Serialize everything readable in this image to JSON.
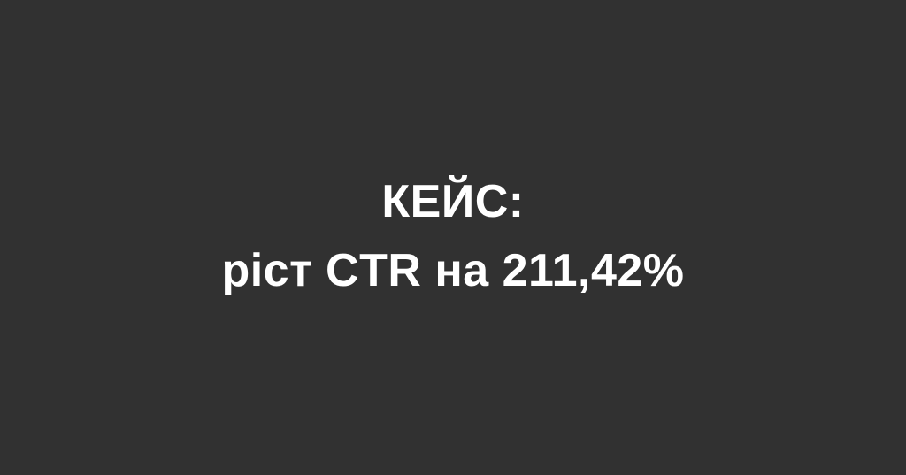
{
  "headline": {
    "line1": "КЕЙС:",
    "line2": "ріст CTR на 211,42%"
  },
  "colors": {
    "background": "#313131",
    "text": "#ffffff"
  }
}
